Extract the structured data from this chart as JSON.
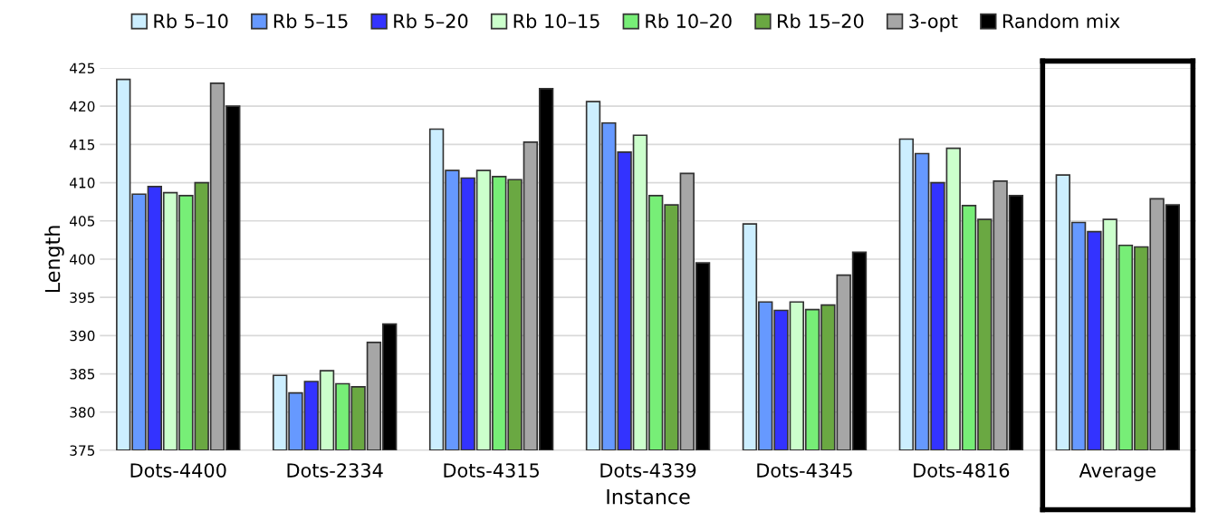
{
  "chart_data": {
    "type": "bar",
    "xlabel": "Instance",
    "ylabel": "Length",
    "categories": [
      "Dots-4400",
      "Dots-2334",
      "Dots-4315",
      "Dots-4339",
      "Dots-4345",
      "Dots-4816",
      "Average"
    ],
    "series": [
      {
        "name": "Rb 5–10",
        "color": "#cceeff",
        "values": [
          423.5,
          384.8,
          417,
          420.6,
          404.6,
          415.7,
          411
        ]
      },
      {
        "name": "Rb 5–15",
        "color": "#6699ff",
        "values": [
          408.5,
          382.5,
          411.6,
          417.8,
          394.4,
          413.8,
          404.8
        ]
      },
      {
        "name": "Rb 5–20",
        "color": "#3333ff",
        "values": [
          409.5,
          384,
          410.6,
          414,
          393.3,
          410,
          403.6
        ]
      },
      {
        "name": "Rb 10–15",
        "color": "#ccffcc",
        "values": [
          408.7,
          385.4,
          411.6,
          416.2,
          394.4,
          414.5,
          405.2
        ]
      },
      {
        "name": "Rb 10–20",
        "color": "#77ee77",
        "values": [
          408.3,
          383.7,
          410.8,
          408.3,
          393.4,
          407,
          401.8
        ]
      },
      {
        "name": "Rb 15–20",
        "color": "#6aa842",
        "values": [
          410,
          383.3,
          410.4,
          407.1,
          394,
          405.2,
          401.6
        ]
      },
      {
        "name": "3-opt",
        "color": "#a6a6a6",
        "values": [
          423,
          389.1,
          415.3,
          411.2,
          397.9,
          410.2,
          407.9
        ]
      },
      {
        "name": "Random mix",
        "color": "#000000",
        "values": [
          420,
          391.5,
          422.3,
          399.5,
          400.9,
          408.3,
          407.1
        ]
      }
    ],
    "ylim": [
      375,
      425
    ],
    "yticks": [
      375,
      380,
      385,
      390,
      395,
      400,
      405,
      410,
      415,
      420,
      425
    ],
    "grid": "y",
    "legend": "top"
  }
}
